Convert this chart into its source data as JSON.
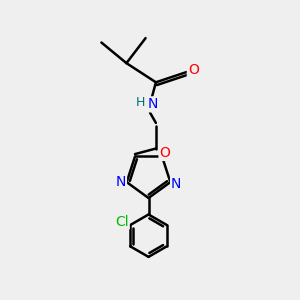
{
  "bg_color": "#efefef",
  "bond_color": "#000000",
  "bond_width": 1.8,
  "atom_colors": {
    "O": "#ff0000",
    "N": "#0000ff",
    "Cl": "#00bb00",
    "C": "#000000",
    "H": "#007070"
  },
  "font_size": 10
}
